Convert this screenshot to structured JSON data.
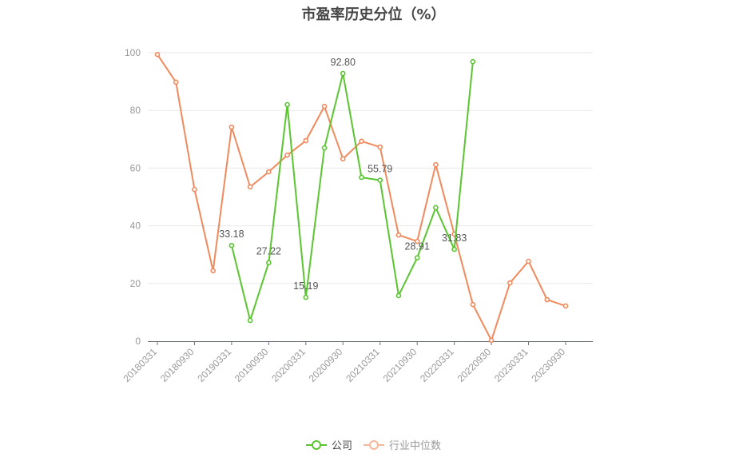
{
  "title": "市盈率历史分位（%）",
  "legend": {
    "company": "公司",
    "industry": "行业中位数"
  },
  "colors": {
    "company": "#5ac531",
    "industry": "#f08a5d",
    "industry_legend": "#f6b79a",
    "grid": "#e8e8e8",
    "axis": "#6e7079",
    "label": "#999999"
  },
  "chart_data": {
    "type": "line",
    "title": "市盈率历史分位（%）",
    "xlabel": "",
    "ylabel": "",
    "ylim": [
      0,
      100
    ],
    "yticks": [
      0,
      20,
      40,
      60,
      80,
      100
    ],
    "grid": true,
    "legend_position": "bottom",
    "x": [
      "20180331",
      "20180630",
      "20180930",
      "20181231",
      "20190331",
      "20190630",
      "20190930",
      "20191231",
      "20200331",
      "20200630",
      "20200930",
      "20201231",
      "20210331",
      "20210630",
      "20210930",
      "20211231",
      "20220331",
      "20220630",
      "20220930",
      "20221231",
      "20230331",
      "20230630",
      "20230930"
    ],
    "tick_labels": [
      "20180331",
      "20180930",
      "20190331",
      "20190930",
      "20200331",
      "20200930",
      "20210331",
      "20210930",
      "20220331",
      "20220930",
      "20230331",
      "20230930"
    ],
    "series": [
      {
        "name": "公司",
        "values": [
          null,
          null,
          null,
          null,
          33.18,
          7.2,
          27.22,
          82.0,
          15.19,
          67.0,
          92.8,
          56.8,
          55.79,
          15.8,
          28.91,
          46.3,
          31.83,
          96.9,
          null,
          null,
          null,
          null,
          null
        ],
        "labeled_points": {
          "20190331": "33.18",
          "20190930": "27.22",
          "20200331": "15.19",
          "20200930": "92.80",
          "20210331": "55.79",
          "20210930": "28.91",
          "20220331": "31.83"
        }
      },
      {
        "name": "行业中位数",
        "values": [
          99.4,
          89.8,
          52.6,
          24.4,
          74.2,
          53.5,
          58.7,
          64.5,
          69.5,
          81.4,
          63.2,
          69.3,
          67.3,
          36.8,
          34.6,
          61.2,
          37.1,
          12.7,
          0.3,
          20.2,
          27.7,
          14.4,
          12.2
        ]
      }
    ]
  }
}
